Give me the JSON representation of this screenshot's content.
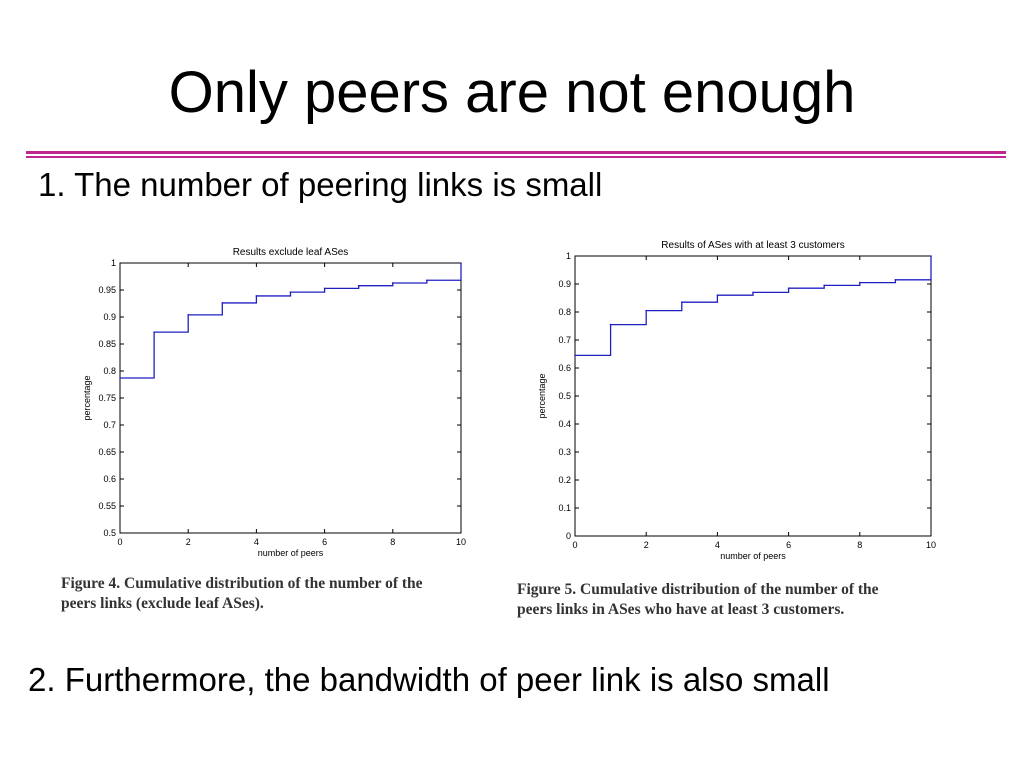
{
  "slide": {
    "title": "Only peers are not enough",
    "bullet_1": "1. The number of peering links is small",
    "bullet_2": "2. Furthermore, the bandwidth of peer link is also small",
    "accent_color": "#c0268f"
  },
  "captions": {
    "left_line1": "Figure 4.  Cumulative distribution of the number of the",
    "left_line2": "peers links (exclude leaf ASes).",
    "right_line1": "Figure 5.  Cumulative distribution of the number of the",
    "right_line2": "peers links in ASes who have at least 3 customers."
  },
  "chart_data": [
    {
      "type": "line",
      "title": "Results exclude leaf ASes",
      "xlabel": "number of peers",
      "ylabel": "percentage",
      "xlim": [
        0,
        10
      ],
      "ylim": [
        0.5,
        1
      ],
      "xticks": [
        0,
        2,
        4,
        6,
        8,
        10
      ],
      "yticks": [
        0.5,
        0.55,
        0.6,
        0.65,
        0.7,
        0.75,
        0.8,
        0.85,
        0.9,
        0.95,
        1
      ],
      "ytick_labels": [
        "0.5",
        "0.55",
        "0.6",
        "0.65",
        "0.7",
        "0.75",
        "0.8",
        "0.85",
        "0.9",
        "0.95",
        "1"
      ],
      "step": true,
      "line_color": "#2020c0",
      "x": [
        0,
        1,
        2,
        3,
        4,
        5,
        6,
        7,
        8,
        9,
        10
      ],
      "y": [
        0.787,
        0.872,
        0.904,
        0.926,
        0.939,
        0.946,
        0.953,
        0.958,
        0.963,
        0.968,
        1.0
      ]
    },
    {
      "type": "line",
      "title": "Results of ASes with at least 3 customers",
      "xlabel": "number of peers",
      "ylabel": "percentage",
      "xlim": [
        0,
        10
      ],
      "ylim": [
        0,
        1
      ],
      "xticks": [
        0,
        2,
        4,
        6,
        8,
        10
      ],
      "yticks": [
        0,
        0.1,
        0.2,
        0.3,
        0.4,
        0.5,
        0.6,
        0.7,
        0.8,
        0.9,
        1
      ],
      "ytick_labels": [
        "0",
        "0.1",
        "0.2",
        "0.3",
        "0.4",
        "0.5",
        "0.6",
        "0.7",
        "0.8",
        "0.9",
        "1"
      ],
      "step": true,
      "line_color": "#2020c0",
      "x": [
        0,
        1,
        2,
        3,
        4,
        5,
        6,
        7,
        8,
        9,
        10
      ],
      "y": [
        0.645,
        0.755,
        0.805,
        0.835,
        0.86,
        0.87,
        0.885,
        0.895,
        0.905,
        0.915,
        1.0
      ]
    }
  ]
}
